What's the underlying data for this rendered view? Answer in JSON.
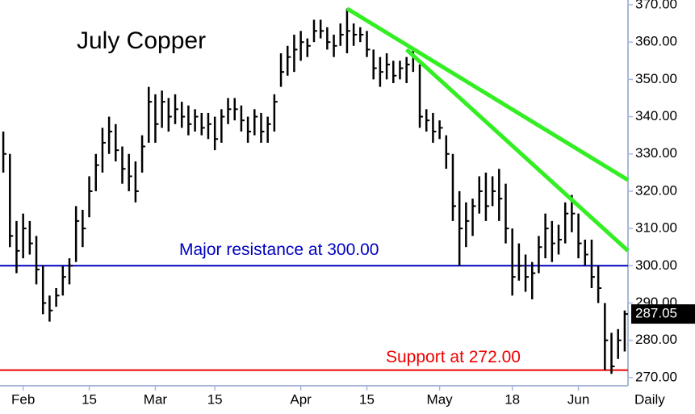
{
  "chart_data": {
    "type": "hlc",
    "title": "July Copper",
    "x_label": "Daily",
    "color": "#000000",
    "xlim": [
      -0.5,
      94.5
    ],
    "xticks": [
      {
        "value": 3,
        "label": "Feb"
      },
      {
        "value": 13,
        "label": "15"
      },
      {
        "value": 23,
        "label": "Mar"
      },
      {
        "value": 32,
        "label": "15"
      },
      {
        "value": 45,
        "label": "Apr"
      },
      {
        "value": 55,
        "label": "15"
      },
      {
        "value": 66,
        "label": "May"
      },
      {
        "value": 77,
        "label": "18"
      },
      {
        "value": 87,
        "label": "Jun"
      }
    ],
    "ylim": [
      267.8,
      371.3
    ],
    "yticks": [
      {
        "value": 270,
        "label": "270.00"
      },
      {
        "value": 280,
        "label": "280.00"
      },
      {
        "value": 290,
        "label": "290.00"
      },
      {
        "value": 300,
        "label": "300.00"
      },
      {
        "value": 310,
        "label": "310.00"
      },
      {
        "value": 320,
        "label": "320.00"
      },
      {
        "value": 330,
        "label": "330.00"
      },
      {
        "value": 340,
        "label": "340.00"
      },
      {
        "value": 350,
        "label": "350.00"
      },
      {
        "value": 360,
        "label": "360.00"
      },
      {
        "value": 370,
        "label": "370.00"
      }
    ],
    "high": [
      336,
      330,
      312,
      314,
      312,
      308,
      300,
      292,
      294,
      300,
      302,
      316,
      315,
      324,
      330,
      337,
      340,
      338,
      332,
      330,
      328,
      335,
      348,
      346,
      347,
      345,
      346,
      344,
      343,
      342,
      341,
      341,
      340,
      342,
      345,
      345,
      343,
      340,
      342,
      341,
      340,
      346,
      357,
      359,
      362,
      363,
      361,
      366,
      366,
      364,
      362,
      365,
      369,
      365,
      364,
      363,
      358,
      356,
      357,
      355,
      355,
      356,
      358,
      354,
      342,
      341,
      339,
      335,
      330,
      320,
      317,
      318,
      324,
      325,
      324,
      326,
      322,
      310,
      306,
      303,
      301,
      308,
      314,
      312,
      311,
      317,
      319,
      314,
      307,
      307,
      300,
      290,
      282,
      283,
      288
    ],
    "low": [
      325,
      305,
      298,
      302,
      303,
      295,
      287,
      285,
      289,
      292,
      295,
      301,
      305,
      313,
      320,
      325,
      330,
      328,
      322,
      320,
      317,
      325,
      333,
      333,
      337,
      336,
      338,
      337,
      335,
      336,
      335,
      334,
      331,
      333,
      338,
      339,
      336,
      333,
      335,
      333,
      333,
      336,
      348,
      351,
      352,
      355,
      356,
      360,
      361,
      358,
      356,
      359,
      357,
      359,
      360,
      356,
      350,
      348,
      350,
      349,
      350,
      349,
      352,
      337,
      336,
      333,
      334,
      326,
      312,
      300,
      305,
      308,
      314,
      312,
      316,
      312,
      306,
      292,
      296,
      293,
      291,
      298,
      302,
      301,
      303,
      306,
      309,
      302,
      300,
      294,
      290,
      272,
      271,
      275,
      277
    ],
    "close": [
      330,
      308,
      304,
      310,
      306,
      299,
      290,
      288,
      292,
      297,
      300,
      312,
      310,
      320,
      327,
      333,
      336,
      331,
      326,
      324,
      320,
      332,
      344,
      338,
      344,
      340,
      342,
      340,
      338,
      340,
      337,
      338,
      334,
      340,
      342,
      342,
      339,
      336,
      340,
      336,
      338,
      344,
      352,
      356,
      358,
      360,
      359,
      363,
      363,
      360,
      359,
      362,
      363,
      362,
      362,
      358,
      353,
      352,
      354,
      351,
      353,
      354,
      356,
      340,
      339,
      336,
      337,
      330,
      316,
      310,
      312,
      316,
      320,
      316,
      320,
      318,
      310,
      297,
      300,
      297,
      298,
      305,
      310,
      306,
      307,
      314,
      314,
      306,
      303,
      297,
      294,
      280,
      273,
      280,
      287.05
    ],
    "last_price": 287.05,
    "levels": [
      {
        "text": "Major resistance at 300.00",
        "value": 300,
        "color": "#0000c0"
      },
      {
        "text": "Support at 272.00",
        "value": 272,
        "color": "#ee0000"
      }
    ],
    "trendlines": [
      {
        "color": "#33ee22",
        "x": [
          52,
          94.5
        ],
        "y": [
          369,
          323
        ]
      },
      {
        "color": "#33ee22",
        "x": [
          61,
          94.5
        ],
        "y": [
          358,
          304
        ]
      }
    ]
  }
}
